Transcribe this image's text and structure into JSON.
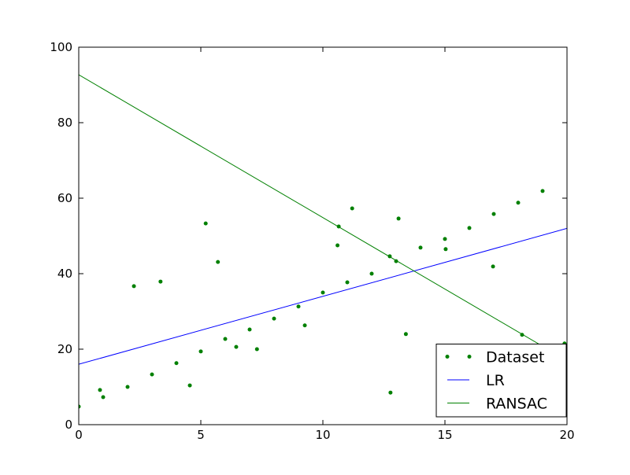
{
  "chart_data": {
    "type": "scatter",
    "xlim": [
      0,
      20
    ],
    "xticks": [
      0,
      5,
      10,
      15,
      20
    ],
    "ylim": [
      0,
      100
    ],
    "yticks": [
      0,
      20,
      40,
      60,
      80,
      100
    ],
    "grid": false,
    "legend": "lower right",
    "series": [
      {
        "name": "Dataset",
        "color": "#008000",
        "mode": "markers",
        "x": [
          0,
          0.87,
          1.0,
          2.0,
          2.26,
          3.0,
          3.35,
          4.0,
          4.55,
          5.0,
          5.2,
          5.7,
          6.0,
          6.45,
          7.0,
          7.3,
          8.0,
          9.0,
          9.26,
          10.0,
          10.6,
          10.65,
          11.0,
          11.2,
          12.0,
          12.74,
          12.77,
          13.0,
          13.1,
          13.4,
          14.0,
          15.0,
          15.03,
          16.0,
          17.0,
          16.97,
          18.0,
          18.16,
          19.0,
          19.9
        ],
        "values": [
          4.8,
          9.2,
          7.3,
          10,
          36.7,
          13.3,
          37.9,
          16.3,
          10.4,
          19.4,
          53.3,
          43.1,
          22.7,
          20.6,
          25.2,
          20,
          28.1,
          31.3,
          26.3,
          35,
          47.5,
          52.5,
          37.7,
          57.3,
          40,
          44.6,
          8.5,
          43.3,
          54.6,
          24,
          46.9,
          49.2,
          46.5,
          52.1,
          55.8,
          41.9,
          58.8,
          23.8,
          61.9,
          21.5
        ]
      },
      {
        "name": "LR",
        "color": "#0000ff",
        "mode": "line",
        "x": [
          0,
          20
        ],
        "values": [
          16,
          52
        ]
      },
      {
        "name": "RANSAC",
        "color": "#008000",
        "mode": "line",
        "x": [
          0,
          20
        ],
        "values": [
          92.7,
          17
        ]
      }
    ]
  }
}
